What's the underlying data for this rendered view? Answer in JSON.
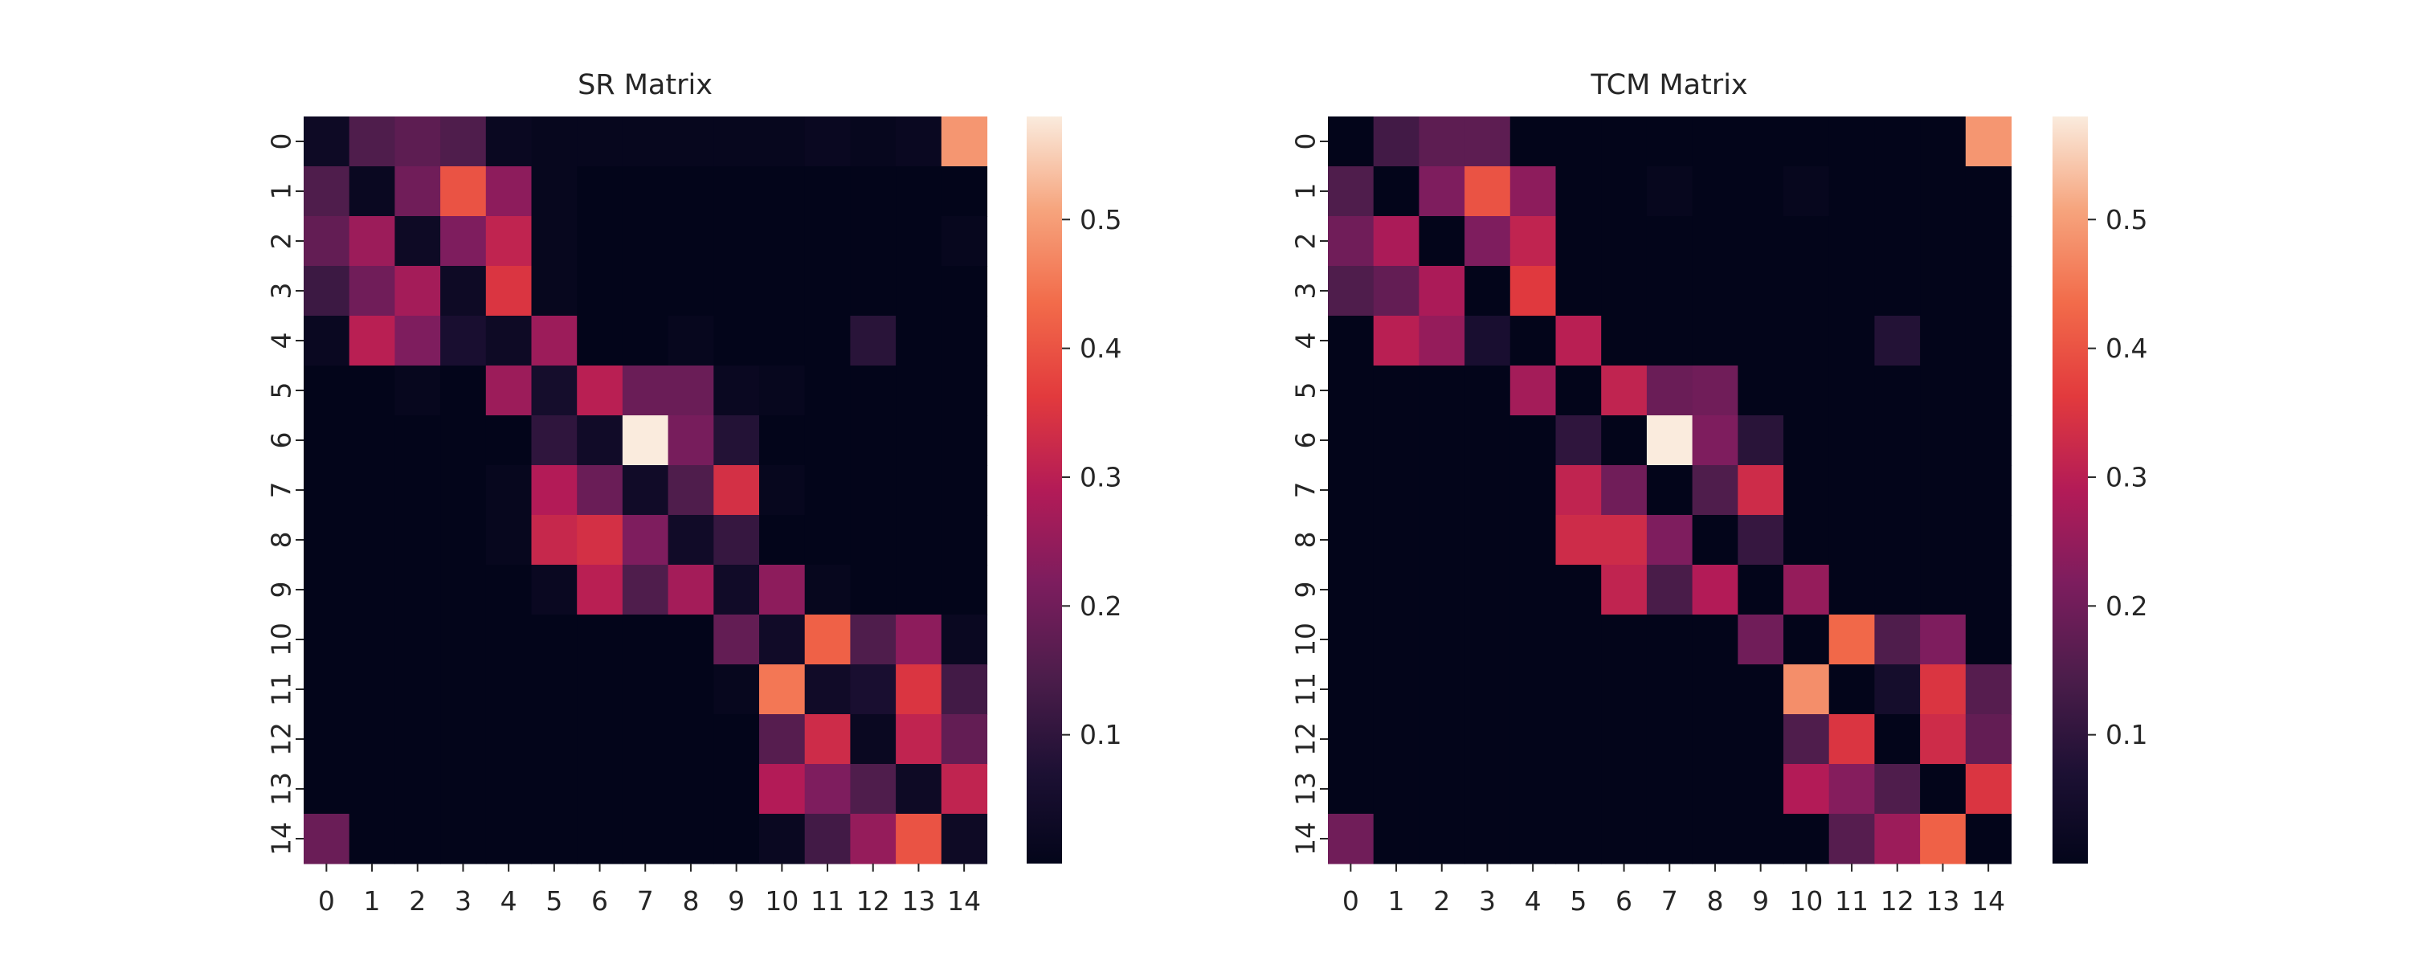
{
  "chart_data": [
    {
      "type": "heatmap",
      "title": "SR Matrix",
      "xlabel": "",
      "ylabel": "",
      "x_categories": [
        "0",
        "1",
        "2",
        "3",
        "4",
        "5",
        "6",
        "7",
        "8",
        "9",
        "10",
        "11",
        "12",
        "13",
        "14"
      ],
      "y_categories": [
        "0",
        "1",
        "2",
        "3",
        "4",
        "5",
        "6",
        "7",
        "8",
        "9",
        "10",
        "11",
        "12",
        "13",
        "14"
      ],
      "values": [
        [
          0.03,
          0.15,
          0.17,
          0.15,
          0.02,
          0.01,
          0.01,
          0.01,
          0.01,
          0.01,
          0.01,
          0.02,
          0.01,
          0.02,
          0.49
        ],
        [
          0.15,
          0.02,
          0.2,
          0.4,
          0.24,
          0.01,
          0.0,
          0.0,
          0.0,
          0.0,
          0.0,
          0.0,
          0.0,
          0.0,
          0.0
        ],
        [
          0.18,
          0.26,
          0.03,
          0.22,
          0.31,
          0.01,
          0.0,
          0.0,
          0.0,
          0.0,
          0.0,
          0.0,
          0.0,
          0.0,
          0.01
        ],
        [
          0.12,
          0.2,
          0.27,
          0.03,
          0.35,
          0.01,
          0.0,
          0.0,
          0.0,
          0.0,
          0.0,
          0.0,
          0.0,
          0.0,
          0.0
        ],
        [
          0.02,
          0.3,
          0.22,
          0.06,
          0.03,
          0.26,
          0.0,
          0.0,
          0.01,
          0.0,
          0.0,
          0.0,
          0.09,
          0.0,
          0.0
        ],
        [
          0.0,
          0.0,
          0.01,
          0.0,
          0.26,
          0.05,
          0.3,
          0.19,
          0.19,
          0.02,
          0.01,
          0.0,
          0.0,
          0.0,
          0.0
        ],
        [
          0.0,
          0.0,
          0.0,
          0.0,
          0.0,
          0.1,
          0.04,
          0.58,
          0.21,
          0.08,
          0.0,
          0.0,
          0.0,
          0.0,
          0.0
        ],
        [
          0.0,
          0.0,
          0.0,
          0.0,
          0.01,
          0.29,
          0.19,
          0.04,
          0.15,
          0.34,
          0.01,
          0.0,
          0.0,
          0.0,
          0.0
        ],
        [
          0.0,
          0.0,
          0.0,
          0.0,
          0.01,
          0.32,
          0.34,
          0.22,
          0.04,
          0.11,
          0.0,
          0.0,
          0.0,
          0.0,
          0.0
        ],
        [
          0.0,
          0.0,
          0.0,
          0.0,
          0.0,
          0.02,
          0.3,
          0.15,
          0.27,
          0.04,
          0.24,
          0.01,
          0.0,
          0.0,
          0.0
        ],
        [
          0.0,
          0.0,
          0.0,
          0.0,
          0.0,
          0.0,
          0.0,
          0.0,
          0.0,
          0.18,
          0.04,
          0.42,
          0.15,
          0.24,
          0.02
        ],
        [
          0.0,
          0.0,
          0.0,
          0.0,
          0.0,
          0.0,
          0.0,
          0.0,
          0.0,
          0.01,
          0.45,
          0.04,
          0.06,
          0.35,
          0.13
        ],
        [
          0.0,
          0.0,
          0.0,
          0.0,
          0.0,
          0.0,
          0.0,
          0.0,
          0.0,
          0.0,
          0.16,
          0.33,
          0.02,
          0.31,
          0.18
        ],
        [
          0.0,
          0.0,
          0.0,
          0.0,
          0.0,
          0.0,
          0.0,
          0.0,
          0.0,
          0.0,
          0.29,
          0.22,
          0.15,
          0.03,
          0.31
        ],
        [
          0.19,
          0.0,
          0.0,
          0.0,
          0.0,
          0.0,
          0.0,
          0.0,
          0.0,
          0.0,
          0.02,
          0.13,
          0.25,
          0.4,
          0.03
        ]
      ],
      "colorbar": {
        "ticks": [
          0.1,
          0.2,
          0.3,
          0.4,
          0.5
        ],
        "vmin": 0.0,
        "vmax": 0.58
      }
    },
    {
      "type": "heatmap",
      "title": "TCM Matrix",
      "xlabel": "",
      "ylabel": "",
      "x_categories": [
        "0",
        "1",
        "2",
        "3",
        "4",
        "5",
        "6",
        "7",
        "8",
        "9",
        "10",
        "11",
        "12",
        "13",
        "14"
      ],
      "y_categories": [
        "0",
        "1",
        "2",
        "3",
        "4",
        "5",
        "6",
        "7",
        "8",
        "9",
        "10",
        "11",
        "12",
        "13",
        "14"
      ],
      "values": [
        [
          0.0,
          0.13,
          0.17,
          0.17,
          0.0,
          0.0,
          0.0,
          0.0,
          0.0,
          0.0,
          0.0,
          0.0,
          0.0,
          0.0,
          0.49
        ],
        [
          0.15,
          0.0,
          0.22,
          0.4,
          0.24,
          0.0,
          0.0,
          0.01,
          0.0,
          0.0,
          0.01,
          0.0,
          0.0,
          0.0,
          0.0
        ],
        [
          0.2,
          0.28,
          0.0,
          0.22,
          0.31,
          0.0,
          0.0,
          0.0,
          0.0,
          0.0,
          0.0,
          0.0,
          0.0,
          0.0,
          0.0
        ],
        [
          0.15,
          0.18,
          0.28,
          0.0,
          0.36,
          0.0,
          0.0,
          0.0,
          0.0,
          0.0,
          0.0,
          0.0,
          0.0,
          0.0,
          0.0
        ],
        [
          0.0,
          0.3,
          0.25,
          0.06,
          0.0,
          0.3,
          0.0,
          0.0,
          0.0,
          0.0,
          0.0,
          0.0,
          0.08,
          0.0,
          0.0
        ],
        [
          0.0,
          0.0,
          0.0,
          0.0,
          0.27,
          0.0,
          0.31,
          0.19,
          0.2,
          0.0,
          0.0,
          0.0,
          0.0,
          0.0,
          0.0
        ],
        [
          0.0,
          0.0,
          0.0,
          0.0,
          0.0,
          0.1,
          0.0,
          0.58,
          0.22,
          0.09,
          0.0,
          0.0,
          0.0,
          0.0,
          0.0
        ],
        [
          0.0,
          0.0,
          0.0,
          0.0,
          0.0,
          0.31,
          0.2,
          0.0,
          0.15,
          0.33,
          0.0,
          0.0,
          0.0,
          0.0,
          0.0
        ],
        [
          0.0,
          0.0,
          0.0,
          0.0,
          0.0,
          0.33,
          0.33,
          0.22,
          0.0,
          0.11,
          0.0,
          0.0,
          0.0,
          0.0,
          0.0
        ],
        [
          0.0,
          0.0,
          0.0,
          0.0,
          0.0,
          0.0,
          0.31,
          0.14,
          0.29,
          0.0,
          0.25,
          0.0,
          0.0,
          0.0,
          0.0
        ],
        [
          0.0,
          0.0,
          0.0,
          0.0,
          0.0,
          0.0,
          0.0,
          0.0,
          0.0,
          0.2,
          0.0,
          0.43,
          0.15,
          0.22,
          0.0
        ],
        [
          0.0,
          0.0,
          0.0,
          0.0,
          0.0,
          0.0,
          0.0,
          0.0,
          0.0,
          0.0,
          0.48,
          0.0,
          0.05,
          0.35,
          0.16
        ],
        [
          0.0,
          0.0,
          0.0,
          0.0,
          0.0,
          0.0,
          0.0,
          0.0,
          0.0,
          0.0,
          0.15,
          0.35,
          0.0,
          0.33,
          0.18
        ],
        [
          0.0,
          0.0,
          0.0,
          0.0,
          0.0,
          0.0,
          0.0,
          0.0,
          0.0,
          0.0,
          0.29,
          0.23,
          0.15,
          0.0,
          0.35
        ],
        [
          0.2,
          0.0,
          0.0,
          0.0,
          0.0,
          0.0,
          0.0,
          0.0,
          0.0,
          0.0,
          0.0,
          0.16,
          0.26,
          0.42,
          0.0
        ]
      ],
      "colorbar": {
        "ticks": [
          0.1,
          0.2,
          0.3,
          0.4,
          0.5
        ],
        "vmin": 0.0,
        "vmax": 0.58
      }
    }
  ],
  "colormap": "rocket",
  "colors": {
    "background": "#ffffff",
    "text": "#262626"
  }
}
